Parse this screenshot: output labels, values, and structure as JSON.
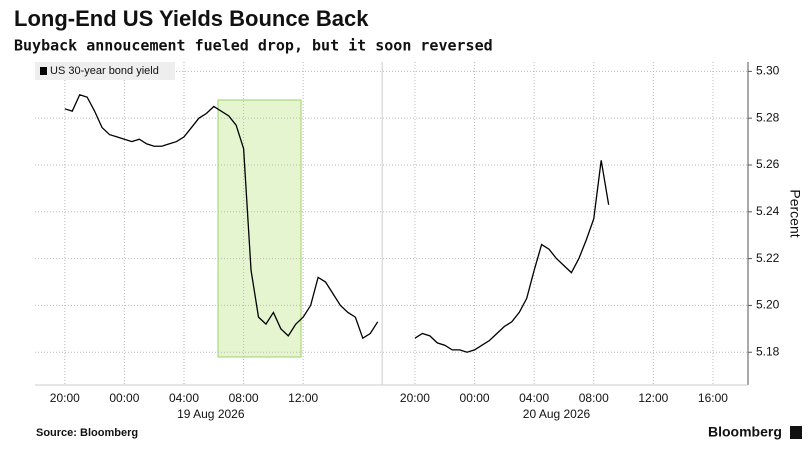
{
  "chart_data": {
    "type": "line",
    "title": "Long-End US Yields Bounce Back",
    "subtitle": "Buyback annoucement fueled drop, but it soon reversed",
    "y_label": "Percent",
    "source": "Source: Bloomberg",
    "brand": "Bloomberg",
    "legend": "top-left",
    "grid": true,
    "y_axis": "right",
    "dates": [
      "19 Aug 2026",
      "20 Aug 2026"
    ],
    "categories": [
      null,
      null,
      null,
      null,
      "20:00",
      null,
      null,
      null,
      null,
      null,
      null,
      null,
      "00:00",
      null,
      null,
      null,
      null,
      null,
      null,
      null,
      "04:00",
      null,
      null,
      null,
      null,
      null,
      null,
      null,
      "08:00",
      null,
      null,
      null,
      null,
      null,
      null,
      null,
      "12:00",
      null,
      null,
      null,
      null,
      null,
      null,
      null,
      null,
      null,
      null,
      null,
      null,
      null,
      null,
      "20:00",
      null,
      null,
      null,
      null,
      null,
      null,
      null,
      "00:00",
      null,
      null,
      null,
      null,
      null,
      null,
      null,
      "04:00",
      null,
      null,
      null,
      null,
      null,
      null,
      null,
      "08:00",
      null,
      null,
      null,
      null,
      null,
      null,
      null,
      "12:00",
      null,
      null,
      null,
      null,
      null,
      null,
      null,
      "16:00",
      null,
      null,
      null,
      null
    ],
    "series": [
      {
        "name": "US 30-year bond yield",
        "color": "#000000",
        "values": [
          null,
          null,
          null,
          null,
          5.284,
          5.283,
          5.29,
          5.289,
          5.283,
          5.276,
          5.273,
          5.272,
          5.271,
          5.27,
          5.271,
          5.269,
          5.268,
          5.268,
          5.269,
          5.27,
          5.272,
          5.276,
          5.28,
          5.282,
          5.285,
          5.283,
          5.281,
          5.277,
          5.267,
          5.215,
          5.195,
          5.192,
          5.197,
          5.19,
          5.187,
          5.192,
          5.195,
          5.2,
          5.212,
          5.21,
          5.205,
          5.2,
          5.197,
          5.195,
          5.186,
          5.188,
          5.193,
          null,
          null,
          null,
          null,
          5.186,
          5.188,
          5.187,
          5.184,
          5.183,
          5.181,
          5.181,
          5.18,
          5.181,
          5.183,
          5.185,
          5.188,
          5.191,
          5.193,
          5.197,
          5.203,
          5.215,
          5.226,
          5.224,
          5.22,
          5.217,
          5.214,
          5.22,
          5.228,
          5.237,
          5.262,
          5.243,
          null,
          null,
          null,
          null,
          null,
          null,
          null,
          null,
          null,
          null,
          null,
          null,
          null,
          null,
          null,
          null,
          null,
          null
        ]
      }
    ],
    "ylim": [
      5.166,
      5.304
    ],
    "yticks": [
      5.18,
      {
        "value": 5.2,
        "label": "5.20"
      },
      5.22,
      5.24,
      5.26,
      5.28,
      {
        "value": 5.3,
        "label": "5.30"
      }
    ]
  }
}
